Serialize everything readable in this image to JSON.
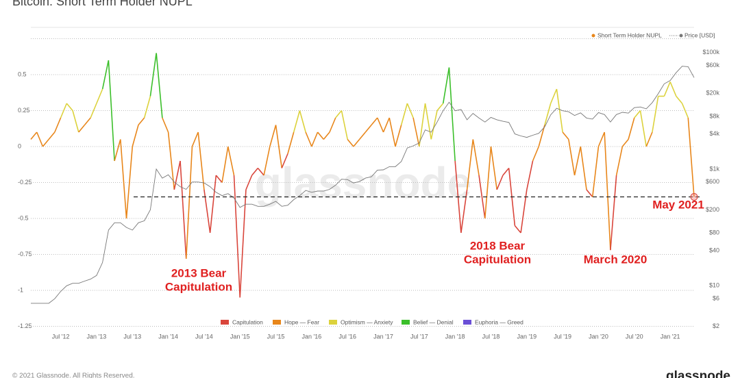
{
  "chart_data": {
    "type": "line",
    "title": "Bitcoin: Short Term Holder NUPL",
    "x": [
      "2012-02",
      "2012-03",
      "2012-04",
      "2012-05",
      "2012-06",
      "2012-07",
      "2012-08",
      "2012-09",
      "2012-10",
      "2012-11",
      "2012-12",
      "2013-01",
      "2013-02",
      "2013-03",
      "2013-04",
      "2013-05",
      "2013-06",
      "2013-07",
      "2013-08",
      "2013-09",
      "2013-10",
      "2013-11",
      "2013-12",
      "2014-01",
      "2014-02",
      "2014-03",
      "2014-04",
      "2014-05",
      "2014-06",
      "2014-07",
      "2014-08",
      "2014-09",
      "2014-10",
      "2014-11",
      "2014-12",
      "2015-01",
      "2015-02",
      "2015-03",
      "2015-04",
      "2015-05",
      "2015-06",
      "2015-07",
      "2015-08",
      "2015-09",
      "2015-10",
      "2015-11",
      "2015-12",
      "2016-01",
      "2016-02",
      "2016-03",
      "2016-04",
      "2016-05",
      "2016-06",
      "2016-07",
      "2016-08",
      "2016-09",
      "2016-10",
      "2016-11",
      "2016-12",
      "2017-01",
      "2017-02",
      "2017-03",
      "2017-04",
      "2017-05",
      "2017-06",
      "2017-07",
      "2017-08",
      "2017-09",
      "2017-10",
      "2017-11",
      "2017-12",
      "2018-01",
      "2018-02",
      "2018-03",
      "2018-04",
      "2018-05",
      "2018-06",
      "2018-07",
      "2018-08",
      "2018-09",
      "2018-10",
      "2018-11",
      "2018-12",
      "2019-01",
      "2019-02",
      "2019-03",
      "2019-04",
      "2019-05",
      "2019-06",
      "2019-07",
      "2019-08",
      "2019-09",
      "2019-10",
      "2019-11",
      "2019-12",
      "2020-01",
      "2020-02",
      "2020-03",
      "2020-04",
      "2020-05",
      "2020-06",
      "2020-07",
      "2020-08",
      "2020-09",
      "2020-10",
      "2020-11",
      "2020-12",
      "2021-01",
      "2021-02",
      "2021-03",
      "2021-04",
      "2021-05"
    ],
    "series": [
      {
        "name": "Short Term Holder NUPL",
        "color": "#e8861a",
        "values": [
          0.05,
          0.1,
          0.0,
          0.05,
          0.1,
          0.2,
          0.3,
          0.25,
          0.1,
          0.15,
          0.2,
          0.3,
          0.4,
          0.6,
          -0.1,
          0.05,
          -0.5,
          0.0,
          0.15,
          0.2,
          0.35,
          0.65,
          0.2,
          0.1,
          -0.3,
          -0.1,
          -0.78,
          0.0,
          0.1,
          -0.3,
          -0.6,
          -0.2,
          -0.25,
          0.0,
          -0.2,
          -1.05,
          -0.3,
          -0.2,
          -0.15,
          -0.2,
          0.0,
          0.15,
          -0.15,
          -0.05,
          0.1,
          0.25,
          0.1,
          0.0,
          0.1,
          0.05,
          0.1,
          0.2,
          0.25,
          0.05,
          0.0,
          0.05,
          0.1,
          0.15,
          0.2,
          0.1,
          0.2,
          0.0,
          0.15,
          0.3,
          0.2,
          0.0,
          0.3,
          0.05,
          0.25,
          0.3,
          0.55,
          -0.1,
          -0.6,
          -0.3,
          0.05,
          -0.2,
          -0.5,
          0.0,
          -0.3,
          -0.2,
          -0.15,
          -0.55,
          -0.6,
          -0.3,
          -0.1,
          0.0,
          0.15,
          0.3,
          0.4,
          0.1,
          0.05,
          -0.2,
          0.0,
          -0.3,
          -0.35,
          0.0,
          0.1,
          -0.72,
          -0.2,
          0.0,
          0.05,
          0.2,
          0.25,
          0.0,
          0.1,
          0.35,
          0.35,
          0.45,
          0.35,
          0.3,
          0.2,
          -0.35
        ]
      },
      {
        "name": "Price [USD]",
        "color": "#777777",
        "axis": "y2",
        "values": [
          5,
          5,
          5,
          5,
          6,
          8,
          10,
          11,
          11,
          12,
          13,
          15,
          25,
          90,
          120,
          120,
          100,
          90,
          120,
          130,
          200,
          1000,
          700,
          800,
          600,
          500,
          450,
          600,
          600,
          580,
          500,
          400,
          350,
          380,
          320,
          220,
          250,
          250,
          230,
          230,
          250,
          280,
          230,
          240,
          300,
          350,
          430,
          400,
          420,
          420,
          450,
          530,
          670,
          660,
          580,
          610,
          700,
          740,
          960,
          970,
          1100,
          1100,
          1350,
          2300,
          2500,
          2800,
          4700,
          4300,
          6400,
          10000,
          14000,
          10000,
          10500,
          7000,
          9000,
          7500,
          6400,
          7700,
          7000,
          6600,
          6300,
          4000,
          3700,
          3500,
          3800,
          4100,
          5300,
          8500,
          11000,
          10000,
          9600,
          8300,
          9200,
          7500,
          7200,
          9300,
          8600,
          6400,
          8600,
          9400,
          9100,
          11300,
          11600,
          10800,
          13800,
          19700,
          29000,
          33000,
          45000,
          58000,
          57000,
          37000
        ]
      }
    ],
    "zones": [
      {
        "name": "Capitulation",
        "color": "#d9453b"
      },
      {
        "name": "Hope — Fear",
        "color": "#e8861a"
      },
      {
        "name": "Optimism — Anxiety",
        "color": "#dcd23c"
      },
      {
        "name": "Belief — Denial",
        "color": "#3bbf2a"
      },
      {
        "name": "Euphoria — Greed",
        "color": "#6a4fd6"
      }
    ],
    "xlim": [
      "2012-02",
      "2021-05"
    ],
    "xticks": [
      {
        "value": "2012-07",
        "label": "Jul '12"
      },
      {
        "value": "2013-01",
        "label": "Jan '13"
      },
      {
        "value": "2013-07",
        "label": "Jul '13"
      },
      {
        "value": "2014-01",
        "label": "Jan '14"
      },
      {
        "value": "2014-07",
        "label": "Jul '14"
      },
      {
        "value": "2015-01",
        "label": "Jan '15"
      },
      {
        "value": "2015-07",
        "label": "Jul '15"
      },
      {
        "value": "2016-01",
        "label": "Jan '16"
      },
      {
        "value": "2016-07",
        "label": "Jul '16"
      },
      {
        "value": "2017-01",
        "label": "Jan '17"
      },
      {
        "value": "2017-07",
        "label": "Jul '17"
      },
      {
        "value": "2018-01",
        "label": "Jan '18"
      },
      {
        "value": "2018-07",
        "label": "Jul '18"
      },
      {
        "value": "2019-01",
        "label": "Jan '19"
      },
      {
        "value": "2019-07",
        "label": "Jul '19"
      },
      {
        "value": "2020-01",
        "label": "Jan '20"
      },
      {
        "value": "2020-07",
        "label": "Jul '20"
      },
      {
        "value": "2021-01",
        "label": "Jan '21"
      }
    ],
    "ylim": [
      -1.27,
      0.75
    ],
    "yticks": [
      -1.25,
      -1,
      -0.75,
      -0.5,
      -0.25,
      0,
      0.25,
      0.5
    ],
    "y2lim": [
      1.8,
      172000
    ],
    "y2_log": true,
    "y2ticks": [
      {
        "value": 2,
        "label": "$2"
      },
      {
        "value": 6,
        "label": "$6"
      },
      {
        "value": 10,
        "label": "$10"
      },
      {
        "value": 40,
        "label": "$40"
      },
      {
        "value": 80,
        "label": "$80"
      },
      {
        "value": 200,
        "label": "$200"
      },
      {
        "value": 600,
        "label": "$600"
      },
      {
        "value": 1000,
        "label": "$1k"
      },
      {
        "value": 4000,
        "label": "$4k"
      },
      {
        "value": 8000,
        "label": "$8k"
      },
      {
        "value": 20000,
        "label": "$20k"
      },
      {
        "value": 60000,
        "label": "$60k"
      },
      {
        "value": 100000,
        "label": "$100k"
      }
    ],
    "grid": true,
    "reference_line": -0.35,
    "annotations": [
      {
        "lines": [
          "2013 Bear",
          "Capitulation"
        ]
      },
      {
        "lines": [
          "2018 Bear",
          "Capitulation"
        ]
      },
      {
        "lines": [
          "March 2020"
        ]
      },
      {
        "lines": [
          "May 2021"
        ]
      }
    ],
    "watermark": "glassnode",
    "footer": "© 2021 Glassnode. All Rights Reserved.",
    "brand": "glassnode"
  }
}
